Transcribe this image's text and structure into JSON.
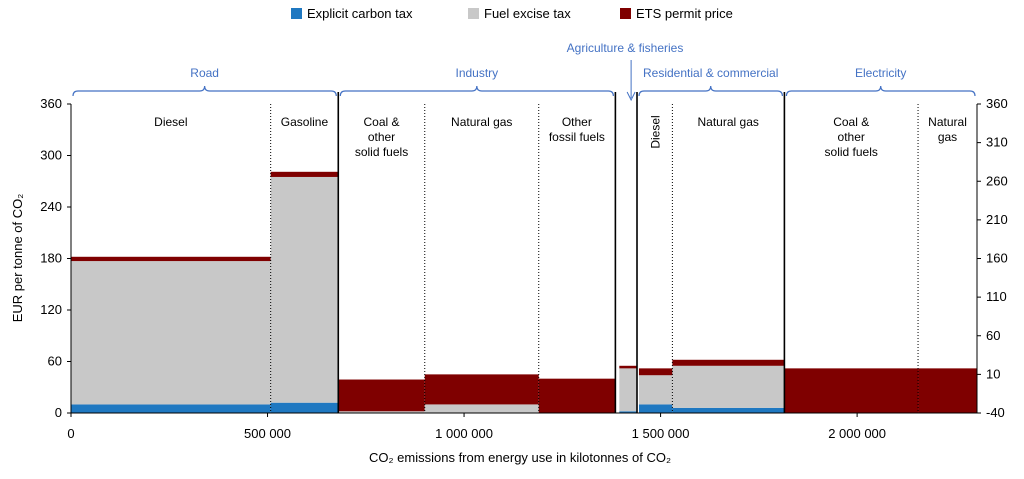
{
  "colors": {
    "carbon_tax": "#1f78c1",
    "fuel_excise": "#c8c8c8",
    "ets": "#7f0000",
    "sector_label": "#4472c4",
    "axis": "#000000"
  },
  "legend": {
    "carbon_tax": "Explicit carbon tax",
    "fuel_excise": "Fuel excise tax",
    "ets": "ETS permit price"
  },
  "sectors": [
    {
      "label": "Road",
      "from": 0,
      "to": 680000
    },
    {
      "label": "Industry",
      "from": 680000,
      "to": 1385000
    },
    {
      "label": "Agriculture & fisheries",
      "arrow_at": 1425000
    },
    {
      "label": "Residential & commercial",
      "from": 1440000,
      "to": 1815000
    },
    {
      "label": "Electricity",
      "from": 1815000,
      "to": 2305000
    }
  ],
  "axes": {
    "xlabel": "CO₂ emissions from energy use in kilotonnes of CO₂",
    "ylabel": "EUR per tonne of CO₂",
    "x_ticks": [
      "0",
      "500 000",
      "1 000 000",
      "1 500 000",
      "2 000 000"
    ],
    "y_ticks": [
      "0",
      "60",
      "120",
      "180",
      "240",
      "300",
      "360"
    ],
    "y2_ticks": [
      "-40",
      "10",
      "60",
      "110",
      "160",
      "210",
      "260",
      "310",
      "360"
    ]
  },
  "chart_data": {
    "type": "bar",
    "title": "",
    "xlabel": "CO₂ emissions from energy use in kilotonnes of CO₂",
    "ylabel": "EUR per tonne of CO₂",
    "xlim": [
      0,
      2305000
    ],
    "ylim": [
      0,
      360
    ],
    "y2lim": [
      -40,
      360
    ],
    "legend_position": "top",
    "series_names": [
      "Explicit carbon tax",
      "Fuel excise tax",
      "ETS permit price"
    ],
    "bars": [
      {
        "sector": "Road",
        "fuel": "Diesel",
        "x0": 0,
        "x1": 508000,
        "carbon_tax": 10,
        "fuel_excise": 167,
        "ets": 5
      },
      {
        "sector": "Road",
        "fuel": "Gasoline",
        "x0": 508000,
        "x1": 680000,
        "carbon_tax": 12,
        "fuel_excise": 263,
        "ets": 6
      },
      {
        "sector": "Industry",
        "fuel": "Coal & other solid fuels",
        "x0": 680000,
        "x1": 900000,
        "carbon_tax": 0,
        "fuel_excise": 2,
        "ets": 37
      },
      {
        "sector": "Industry",
        "fuel": "Natural gas",
        "x0": 900000,
        "x1": 1190000,
        "carbon_tax": 0,
        "fuel_excise": 10,
        "ets": 35
      },
      {
        "sector": "Industry",
        "fuel": "Other fossil fuels",
        "x0": 1190000,
        "x1": 1385000,
        "carbon_tax": 0,
        "fuel_excise": 0,
        "ets": 40
      },
      {
        "sector": "Agriculture & fisheries",
        "fuel": "",
        "x0": 1395000,
        "x1": 1440000,
        "carbon_tax": 2,
        "fuel_excise": 50,
        "ets": 3
      },
      {
        "sector": "Residential & commercial",
        "fuel": "Diesel",
        "x0": 1445000,
        "x1": 1530000,
        "carbon_tax": 10,
        "fuel_excise": 34,
        "ets": 8
      },
      {
        "sector": "Residential & commercial",
        "fuel": "Natural gas",
        "x0": 1530000,
        "x1": 1815000,
        "carbon_tax": 6,
        "fuel_excise": 49,
        "ets": 7
      },
      {
        "sector": "Electricity",
        "fuel": "Coal & other solid fuels",
        "x0": 1815000,
        "x1": 2155000,
        "carbon_tax": 0,
        "fuel_excise": 0,
        "ets": 52
      },
      {
        "sector": "Electricity",
        "fuel": "Natural gas",
        "x0": 2155000,
        "x1": 2305000,
        "carbon_tax": 0,
        "fuel_excise": 0,
        "ets": 52
      }
    ],
    "fuel_labels": [
      {
        "text": "Diesel",
        "cx": 254000
      },
      {
        "text": "Gasoline",
        "cx": 594000
      },
      {
        "text": "Coal & other solid fuels",
        "cx": 790000
      },
      {
        "text": "Natural gas",
        "cx": 1045000
      },
      {
        "text": "Other fossil fuels",
        "cx": 1287000
      },
      {
        "text": "Diesel",
        "cx": 1487000,
        "vertical": true
      },
      {
        "text": "Natural gas",
        "cx": 1672000
      },
      {
        "text": "Coal & other solid fuels",
        "cx": 1985000
      },
      {
        "text": "Natural gas",
        "cx": 2230000
      }
    ],
    "dotted_dividers": [
      508000,
      900000,
      1190000,
      1530000,
      2155000
    ],
    "solid_dividers": [
      680000,
      1385000,
      1440000,
      1815000
    ]
  }
}
